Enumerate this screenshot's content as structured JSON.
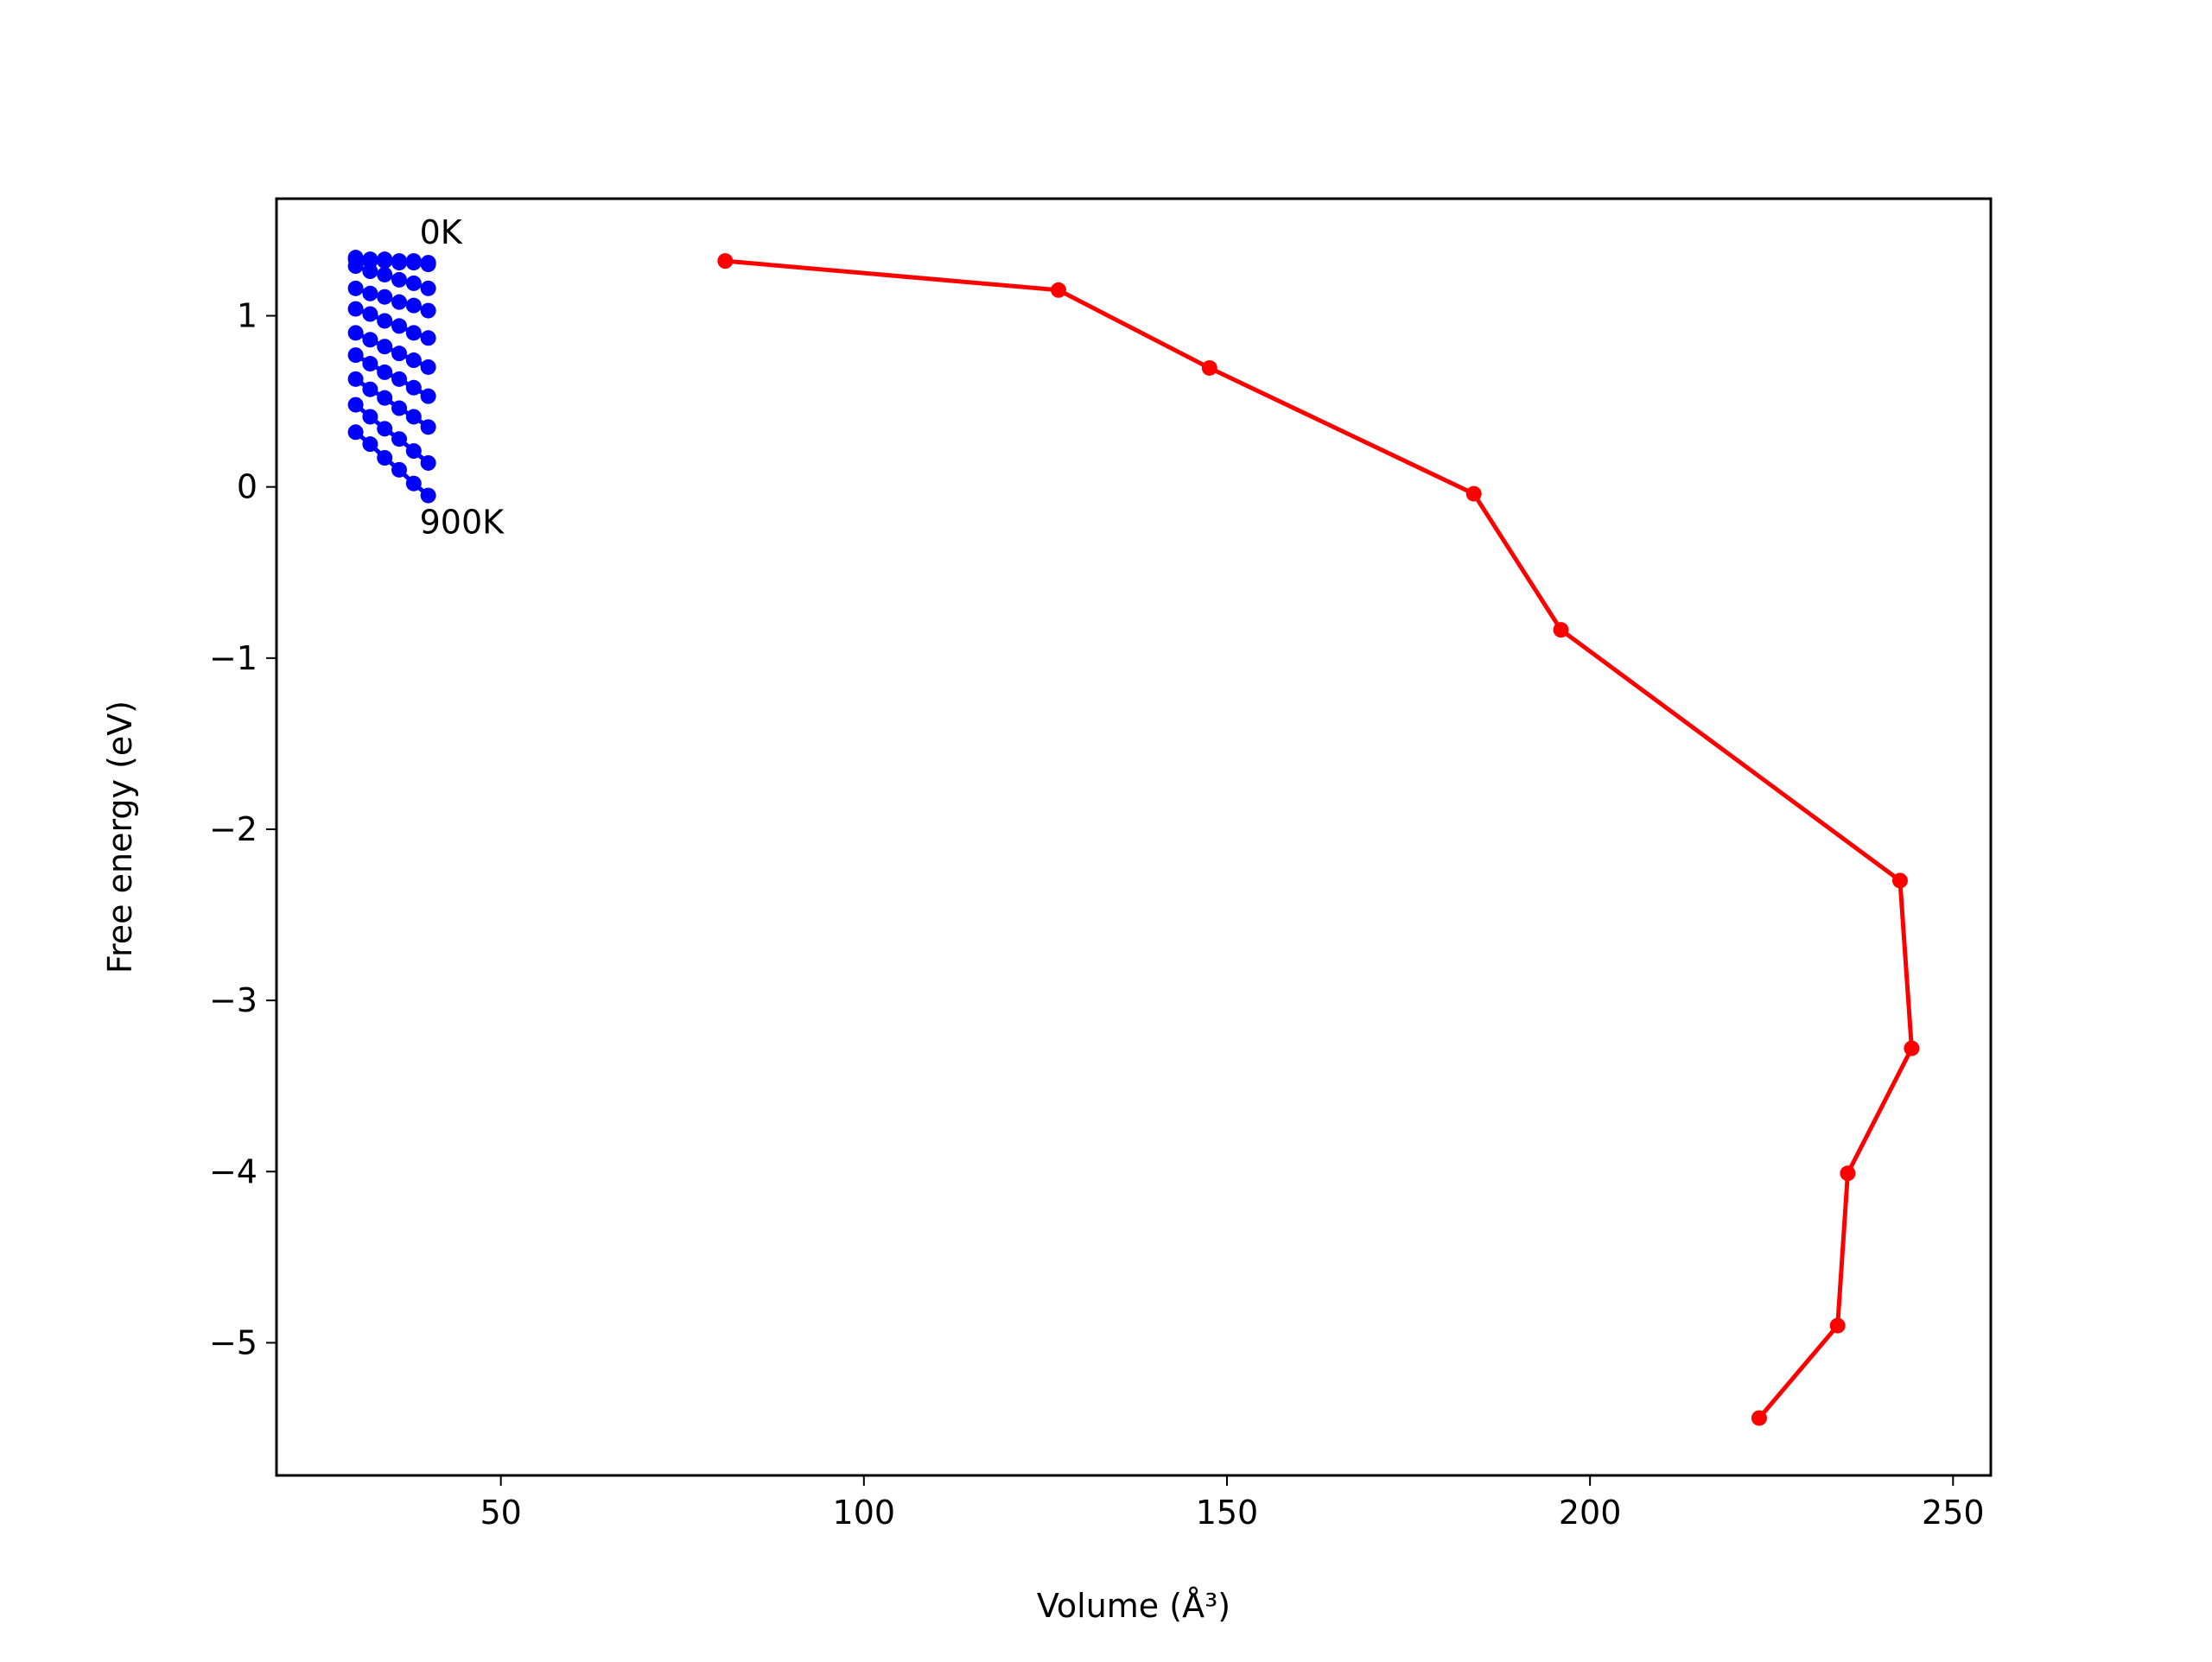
{
  "chart_data": {
    "type": "line",
    "x_label": "Volume (Å³)",
    "y_label": "Free energy (eV)",
    "xlim": [
      19.1,
      255.2
    ],
    "ylim": [
      -5.775,
      1.684
    ],
    "xticks": [
      50,
      100,
      150,
      200,
      250
    ],
    "yticks": [
      {
        "value": -5,
        "label": "−5"
      },
      {
        "value": -4,
        "label": "−4"
      },
      {
        "value": -3,
        "label": "−3"
      },
      {
        "value": -2,
        "label": "−2"
      },
      {
        "value": -1,
        "label": "−1"
      },
      0,
      1
    ],
    "annotations": [
      "0K",
      "900K"
    ],
    "series": [
      {
        "color": "#0000ff",
        "x": [
          30,
          32,
          34,
          36,
          38,
          40
        ],
        "values": [
          1.34,
          1.33,
          1.33,
          1.32,
          1.32,
          1.31
        ]
      },
      {
        "color": "#0000ff",
        "x": [
          30,
          32,
          34,
          36,
          38,
          40
        ],
        "values": [
          1.33,
          1.32,
          1.32,
          1.31,
          1.31,
          1.3
        ]
      },
      {
        "color": "#0000ff",
        "x": [
          30,
          32,
          34,
          36,
          38,
          40
        ],
        "values": [
          1.29,
          1.26,
          1.24,
          1.21,
          1.19,
          1.16
        ]
      },
      {
        "color": "#0000ff",
        "x": [
          30,
          32,
          34,
          36,
          38,
          40
        ],
        "values": [
          1.16,
          1.13,
          1.11,
          1.08,
          1.06,
          1.03
        ]
      },
      {
        "color": "#0000ff",
        "x": [
          30,
          32,
          34,
          36,
          38,
          40
        ],
        "values": [
          1.04,
          1.01,
          0.97,
          0.94,
          0.9,
          0.87
        ]
      },
      {
        "color": "#0000ff",
        "x": [
          30,
          32,
          34,
          36,
          38,
          40
        ],
        "values": [
          0.9,
          0.86,
          0.82,
          0.78,
          0.74,
          0.7
        ]
      },
      {
        "color": "#0000ff",
        "x": [
          30,
          32,
          34,
          36,
          38,
          40
        ],
        "values": [
          0.77,
          0.72,
          0.67,
          0.63,
          0.58,
          0.53
        ]
      },
      {
        "color": "#0000ff",
        "x": [
          30,
          32,
          34,
          36,
          38,
          40
        ],
        "values": [
          0.63,
          0.57,
          0.52,
          0.46,
          0.41,
          0.35
        ]
      },
      {
        "color": "#0000ff",
        "x": [
          30,
          32,
          34,
          36,
          38,
          40
        ],
        "values": [
          0.48,
          0.41,
          0.34,
          0.28,
          0.21,
          0.14
        ]
      },
      {
        "color": "#0000ff",
        "x": [
          30,
          32,
          34,
          36,
          38,
          40
        ],
        "values": [
          0.32,
          0.25,
          0.17,
          0.1,
          0.02,
          -0.05
        ]
      },
      {
        "color": "#ff0000",
        "x": [
          80.9,
          126.8,
          147.6,
          184.0,
          196.0,
          242.7,
          244.3,
          235.5,
          234.1,
          223.3
        ],
        "values": [
          1.32,
          1.15,
          0.695,
          -0.04,
          -0.835,
          -2.3,
          -3.28,
          -4.01,
          -4.9,
          -5.44
        ]
      }
    ]
  }
}
